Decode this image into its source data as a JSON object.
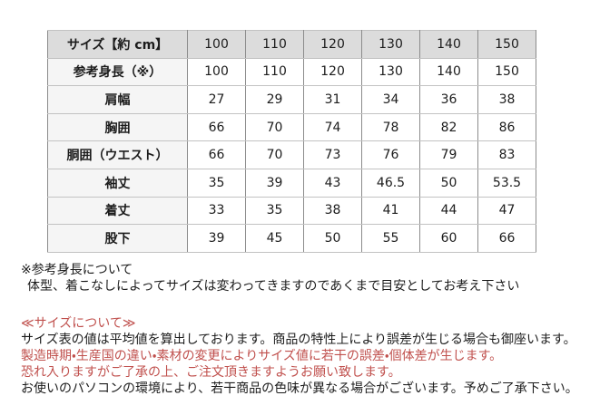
{
  "table": {
    "header": {
      "label": "サイズ【約 cm】",
      "sizes": [
        "100",
        "110",
        "120",
        "130",
        "140",
        "150"
      ]
    },
    "rows": [
      {
        "label": "参考身長（※）",
        "values": [
          "100",
          "110",
          "120",
          "130",
          "140",
          "150"
        ]
      },
      {
        "label": "肩幅",
        "values": [
          "27",
          "29",
          "31",
          "34",
          "36",
          "38"
        ]
      },
      {
        "label": "胸囲",
        "values": [
          "66",
          "70",
          "74",
          "78",
          "82",
          "86"
        ]
      },
      {
        "label": "胴囲（ウエスト）",
        "values": [
          "66",
          "70",
          "73",
          "76",
          "79",
          "83"
        ]
      },
      {
        "label": "袖丈",
        "values": [
          "35",
          "39",
          "43",
          "46.5",
          "50",
          "53.5"
        ]
      },
      {
        "label": "着丈",
        "values": [
          "33",
          "35",
          "38",
          "41",
          "44",
          "47"
        ]
      },
      {
        "label": "股下",
        "values": [
          "39",
          "45",
          "50",
          "55",
          "60",
          "66"
        ]
      }
    ]
  },
  "notes": {
    "reference": {
      "title": "※参考身長について",
      "body": "体型、着こなしによってサイズは変わってきますのであくまで目安としてお考え下さい"
    },
    "size_about": {
      "title": "≪サイズについて≫",
      "lines": [
        {
          "text": "サイズ表の値は平均値を算出しております。商品の特性上により誤差が生じる場合も御座います。",
          "color": "black"
        },
        {
          "text": "製造時期・生産国の違い・素材の変更によりサイズ値に若干の誤差・個体差が生じます。",
          "color": "red"
        },
        {
          "text": "恐れ入りますがご了承の上、ご注文頂きますようお願い致します。",
          "color": "red"
        },
        {
          "text": "お使いのパソコンの環境により、若干商品の色味が異なる場合がございます。予めご了承下さい。",
          "color": "black"
        }
      ]
    }
  },
  "colors": {
    "red_text": "#c0504d",
    "header_row_bg": "#dcdcdc",
    "label_column_bg": "#f5f5f5",
    "grid_line": "#8c8c8c"
  }
}
